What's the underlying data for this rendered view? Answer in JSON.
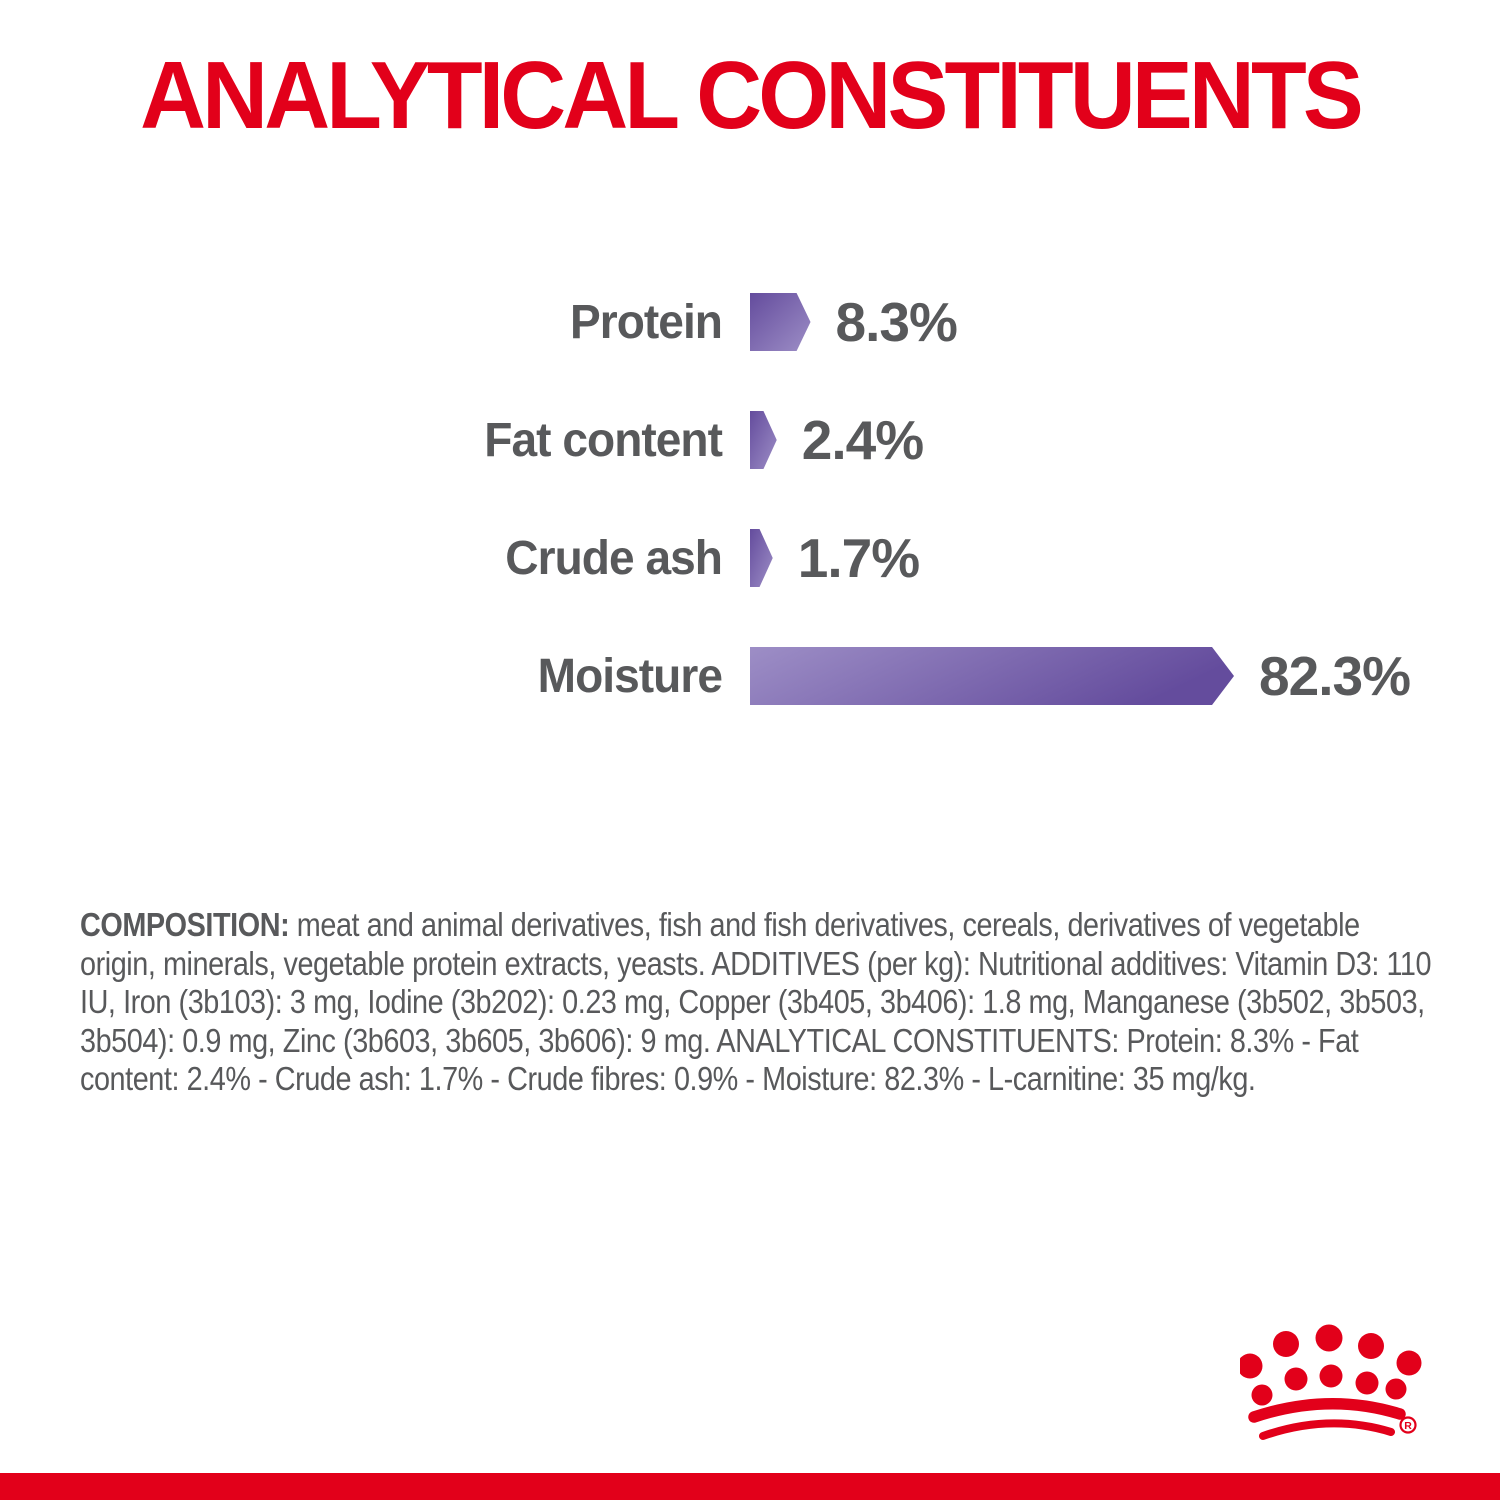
{
  "title": "ANALYTICAL CONSTITUENTS",
  "colors": {
    "brand_red": "#e2001a",
    "text_gray": "#58595b",
    "bar_purple_light": "#9d8ec6",
    "bar_purple_dark": "#644c9d"
  },
  "chart_data": {
    "type": "bar",
    "orientation": "horizontal",
    "title": "ANALYTICAL CONSTITUENTS",
    "unit": "%",
    "xlim": [
      0,
      100
    ],
    "grid": false,
    "legend": false,
    "categories": [
      "Protein",
      "Fat content",
      "Crude ash",
      "Moisture"
    ],
    "values": [
      8.3,
      2.4,
      1.7,
      82.3
    ],
    "value_labels": [
      "8.3%",
      "2.4%",
      "1.7%",
      "82.3%"
    ],
    "bar_color_gradient": [
      "#9d8ec6",
      "#644c9d"
    ],
    "bar_shape": "right-pointing-arrow"
  },
  "composition": {
    "lead": "COMPOSITION:",
    "text": " meat and animal derivatives, fish and fish derivatives, cereals, derivatives of vegetable origin, minerals, vegetable protein extracts, yeasts. ADDITIVES (per kg): Nutritional additives: Vitamin D3: 110 IU, Iron (3b103): 3 mg, Iodine (3b202): 0.23 mg, Copper (3b405, 3b406): 1.8 mg, Manganese (3b502, 3b503, 3b504): 0.9 mg, Zinc (3b603, 3b605, 3b606): 9 mg. ANALYTICAL CONSTITUENTS: Protein: 8.3% - Fat content: 2.4% - Crude ash: 1.7% - Crude fibres: 0.9% - Moisture: 82.3% - L-carnitine: 35 mg/kg."
  },
  "logo": {
    "name": "royal-canin-crown",
    "registered_text": "R"
  }
}
